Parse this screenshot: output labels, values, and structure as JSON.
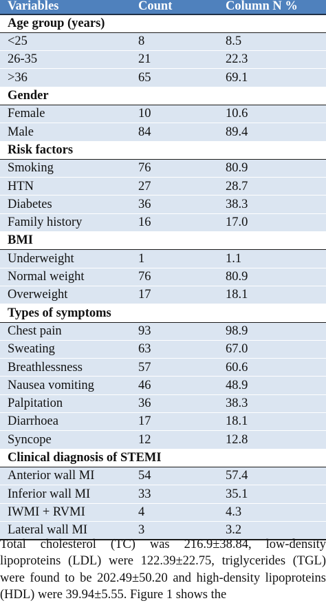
{
  "table": {
    "headers": [
      "Variables",
      "Count",
      "Column N %"
    ],
    "sections": [
      {
        "title": "Age group (years)",
        "rows": [
          [
            "<25",
            "8",
            "8.5"
          ],
          [
            "26-35",
            "21",
            "22.3"
          ],
          [
            ">36",
            "65",
            "69.1"
          ]
        ]
      },
      {
        "title": "Gender",
        "rows": [
          [
            "Female",
            "10",
            "10.6"
          ],
          [
            "Male",
            "84",
            "89.4"
          ]
        ]
      },
      {
        "title": "Risk factors",
        "rows": [
          [
            "Smoking",
            "76",
            "80.9"
          ],
          [
            "HTN",
            "27",
            "28.7"
          ],
          [
            "Diabetes",
            "36",
            "38.3"
          ],
          [
            "Family history",
            "16",
            "17.0"
          ]
        ]
      },
      {
        "title": "BMI",
        "rows": [
          [
            "Underweight",
            "1",
            "1.1"
          ],
          [
            "Normal weight",
            "76",
            "80.9"
          ],
          [
            "Overweight",
            "17",
            "18.1"
          ]
        ]
      },
      {
        "title": "Types of symptoms",
        "rows": [
          [
            "Chest pain",
            "93",
            "98.9"
          ],
          [
            "Sweating",
            "63",
            "67.0"
          ],
          [
            "Breathlessness",
            "57",
            "60.6"
          ],
          [
            "Nausea vomiting",
            "46",
            "48.9"
          ],
          [
            "Palpitation",
            "36",
            "38.3"
          ],
          [
            "Diarrhoea",
            "17",
            "18.1"
          ],
          [
            "Syncope",
            "12",
            "12.8"
          ]
        ]
      },
      {
        "title": "Clinical diagnosis of STEMI",
        "rows": [
          [
            "Anterior wall MI",
            "54",
            "57.4"
          ],
          [
            "Inferior wall MI",
            "33",
            "35.1"
          ],
          [
            "IWMI + RVMI",
            "4",
            "4.3"
          ],
          [
            "Lateral wall MI",
            "3",
            "3.2"
          ]
        ]
      }
    ]
  },
  "paragraph": "Total cholesterol (TC) was 216.9±38.84, low-density lipoproteins (LDL) were 122.39±22.75, triglycerides (TGL) were found to be 202.49±50.20 and high-density lipoproteins (HDL) were 39.94±5.55. Figure 1 shows the"
}
